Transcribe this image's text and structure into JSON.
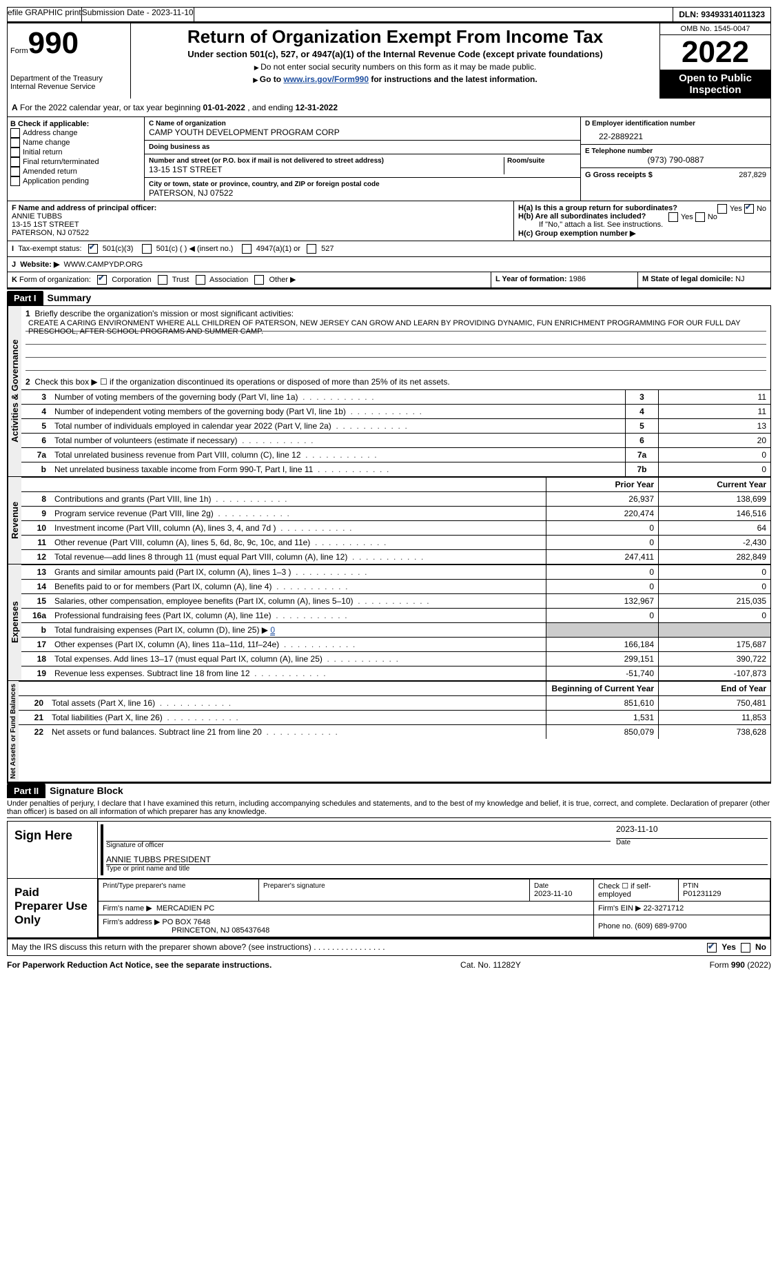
{
  "top_bar": {
    "efile": "efile GRAPHIC print",
    "submission": "Submission Date - 2023-11-10",
    "dln": "DLN: 93493314011323"
  },
  "header": {
    "form_word": "Form",
    "form_num": "990",
    "title": "Return of Organization Exempt From Income Tax",
    "subtitle": "Under section 501(c), 527, or 4947(a)(1) of the Internal Revenue Code (except private foundations)",
    "line1": "Do not enter social security numbers on this form as it may be made public.",
    "line2_pre": "Go to ",
    "line2_link": "www.irs.gov/Form990",
    "line2_post": " for instructions and the latest information.",
    "dept": "Department of the Treasury",
    "irs": "Internal Revenue Service",
    "omb": "OMB No. 1545-0047",
    "year": "2022",
    "open": "Open to Public Inspection"
  },
  "row_a": {
    "label": "A",
    "text_pre": " For the 2022 calendar year, or tax year beginning ",
    "begin": "01-01-2022",
    "mid": "  , and ending ",
    "end": "12-31-2022"
  },
  "section_b": {
    "b_label": "B Check if applicable:",
    "opts": [
      "Address change",
      "Name change",
      "Initial return",
      "Final return/terminated",
      "Amended return",
      "Application pending"
    ],
    "c_name_label": "C Name of organization",
    "c_name": "CAMP YOUTH DEVELOPMENT PROGRAM CORP",
    "dba_label": "Doing business as",
    "dba": "",
    "addr_label": "Number and street (or P.O. box if mail is not delivered to street address)",
    "room_label": "Room/suite",
    "addr": "13-15 1ST STREET",
    "city_label": "City or town, state or province, country, and ZIP or foreign postal code",
    "city": "PATERSON, NJ  07522",
    "d_label": "D Employer identification number",
    "d_val": "22-2889221",
    "e_label": "E Telephone number",
    "e_val": "(973) 790-0887",
    "g_label": "G Gross receipts $",
    "g_val": "287,829"
  },
  "section_f": {
    "f_label": "F  Name and address of principal officer:",
    "f_name": "ANNIE TUBBS",
    "f_addr1": "13-15 1ST STREET",
    "f_addr2": "PATERSON, NJ  07522",
    "ha_label": "H(a)  Is this a group return for subordinates?",
    "hb_label": "H(b)  Are all subordinates included?",
    "hb_note": "If \"No,\" attach a list. See instructions.",
    "hc_label": "H(c)  Group exemption number ▶",
    "yes": "Yes",
    "no": "No"
  },
  "row_i": {
    "label": "I",
    "text": "Tax-exempt status:",
    "o1": "501(c)(3)",
    "o2": "501(c) (   ) ◀ (insert no.)",
    "o3": "4947(a)(1) or",
    "o4": "527"
  },
  "row_j": {
    "label": "J",
    "text": "Website: ▶",
    "val": "WWW.CAMPYDP.ORG"
  },
  "row_k": {
    "label": "K",
    "text": "Form of organization:",
    "opts": [
      "Corporation",
      "Trust",
      "Association",
      "Other ▶"
    ],
    "l_label": "L Year of formation:",
    "l_val": "1986",
    "m_label": "M State of legal domicile:",
    "m_val": "NJ"
  },
  "part1": {
    "header": "Part I",
    "title": "Summary",
    "q1_label": "1",
    "q1_text": "Briefly describe the organization's mission or most significant activities:",
    "q1_val": "CREATE A CARING ENVIRONMENT WHERE ALL CHILDREN OF PATERSON, NEW JERSEY CAN GROW AND LEARN BY PROVIDING DYNAMIC, FUN ENRICHMENT PROGRAMMING FOR OUR FULL DAY PRESCHOOL, AFTER SCHOOL PROGRAMS AND SUMMER CAMP.",
    "q2": "Check this box ▶ ☐  if the organization discontinued its operations or disposed of more than 25% of its net assets.",
    "vert_activities": "Activities & Governance",
    "rows_a": [
      {
        "n": "3",
        "t": "Number of voting members of the governing body (Part VI, line 1a)",
        "box": "3",
        "v": "11"
      },
      {
        "n": "4",
        "t": "Number of independent voting members of the governing body (Part VI, line 1b)",
        "box": "4",
        "v": "11"
      },
      {
        "n": "5",
        "t": "Total number of individuals employed in calendar year 2022 (Part V, line 2a)",
        "box": "5",
        "v": "13"
      },
      {
        "n": "6",
        "t": "Total number of volunteers (estimate if necessary)",
        "box": "6",
        "v": "20"
      },
      {
        "n": "7a",
        "t": "Total unrelated business revenue from Part VIII, column (C), line 12",
        "box": "7a",
        "v": "0"
      },
      {
        "n": "b",
        "t": "Net unrelated business taxable income from Form 990-T, Part I, line 11",
        "box": "7b",
        "v": "0"
      }
    ],
    "col_prior": "Prior Year",
    "col_current": "Current Year",
    "vert_revenue": "Revenue",
    "rows_rev": [
      {
        "n": "8",
        "t": "Contributions and grants (Part VIII, line 1h)",
        "p": "26,937",
        "c": "138,699"
      },
      {
        "n": "9",
        "t": "Program service revenue (Part VIII, line 2g)",
        "p": "220,474",
        "c": "146,516"
      },
      {
        "n": "10",
        "t": "Investment income (Part VIII, column (A), lines 3, 4, and 7d )",
        "p": "0",
        "c": "64"
      },
      {
        "n": "11",
        "t": "Other revenue (Part VIII, column (A), lines 5, 6d, 8c, 9c, 10c, and 11e)",
        "p": "0",
        "c": "-2,430"
      },
      {
        "n": "12",
        "t": "Total revenue—add lines 8 through 11 (must equal Part VIII, column (A), line 12)",
        "p": "247,411",
        "c": "282,849"
      }
    ],
    "vert_expenses": "Expenses",
    "rows_exp": [
      {
        "n": "13",
        "t": "Grants and similar amounts paid (Part IX, column (A), lines 1–3 )",
        "p": "0",
        "c": "0"
      },
      {
        "n": "14",
        "t": "Benefits paid to or for members (Part IX, column (A), line 4)",
        "p": "0",
        "c": "0"
      },
      {
        "n": "15",
        "t": "Salaries, other compensation, employee benefits (Part IX, column (A), lines 5–10)",
        "p": "132,967",
        "c": "215,035"
      },
      {
        "n": "16a",
        "t": "Professional fundraising fees (Part IX, column (A), line 11e)",
        "p": "0",
        "c": "0"
      },
      {
        "n": "b",
        "t": "Total fundraising expenses (Part IX, column (D), line 25) ▶",
        "fundraising": "0",
        "p": "",
        "c": "",
        "shaded": true
      },
      {
        "n": "17",
        "t": "Other expenses (Part IX, column (A), lines 11a–11d, 11f–24e)",
        "p": "166,184",
        "c": "175,687"
      },
      {
        "n": "18",
        "t": "Total expenses. Add lines 13–17 (must equal Part IX, column (A), line 25)",
        "p": "299,151",
        "c": "390,722"
      },
      {
        "n": "19",
        "t": "Revenue less expenses. Subtract line 18 from line 12",
        "p": "-51,740",
        "c": "-107,873"
      }
    ],
    "col_begin": "Beginning of Current Year",
    "col_end": "End of Year",
    "vert_net": "Net Assets or Fund Balances",
    "rows_net": [
      {
        "n": "20",
        "t": "Total assets (Part X, line 16)",
        "p": "851,610",
        "c": "750,481"
      },
      {
        "n": "21",
        "t": "Total liabilities (Part X, line 26)",
        "p": "1,531",
        "c": "11,853"
      },
      {
        "n": "22",
        "t": "Net assets or fund balances. Subtract line 21 from line 20",
        "p": "850,079",
        "c": "738,628"
      }
    ]
  },
  "part2": {
    "header": "Part II",
    "title": "Signature Block",
    "penalty": "Under penalties of perjury, I declare that I have examined this return, including accompanying schedules and statements, and to the best of my knowledge and belief, it is true, correct, and complete. Declaration of preparer (other than officer) is based on all information of which preparer has any knowledge.",
    "sign_here": "Sign Here",
    "sig_officer": "Signature of officer",
    "sig_date": "2023-11-10",
    "sig_date_label": "Date",
    "officer_name": "ANNIE TUBBS PRESIDENT",
    "officer_label": "Type or print name and title",
    "paid_prep": "Paid Preparer Use Only",
    "prep_name_label": "Print/Type preparer's name",
    "prep_sig_label": "Preparer's signature",
    "prep_date_label": "Date",
    "prep_date": "2023-11-10",
    "check_if": "Check ☐ if self-employed",
    "ptin_label": "PTIN",
    "ptin": "P01231129",
    "firm_name_label": "Firm's name     ▶",
    "firm_name": "MERCADIEN PC",
    "firm_ein_label": "Firm's EIN ▶",
    "firm_ein": "22-3271712",
    "firm_addr_label": "Firm's address ▶",
    "firm_addr1": "PO BOX 7648",
    "firm_addr2": "PRINCETON, NJ  085437648",
    "firm_phone_label": "Phone no.",
    "firm_phone": "(609) 689-9700",
    "discuss": "May the IRS discuss this return with the preparer shown above? (see instructions)",
    "discuss_yes": "Yes",
    "discuss_no": "No"
  },
  "footer": {
    "left": "For Paperwork Reduction Act Notice, see the separate instructions.",
    "mid": "Cat. No. 11282Y",
    "right": "Form 990 (2022)"
  }
}
